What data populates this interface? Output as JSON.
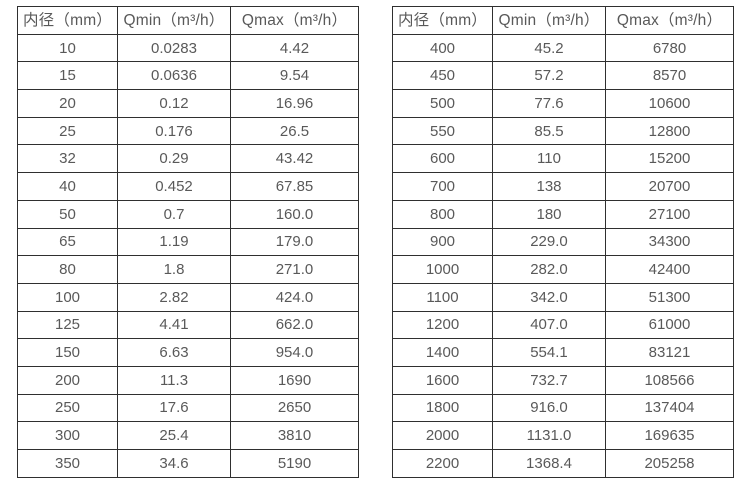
{
  "colors": {
    "background": "#ffffff",
    "border": "#2f2f2f",
    "text": "#595959"
  },
  "tables": [
    {
      "headers": [
        "内径（mm）",
        "Qmin（m³/h）",
        "Qmax（m³/h）"
      ],
      "rows": [
        [
          "10",
          "0.0283",
          "4.42"
        ],
        [
          "15",
          "0.0636",
          "9.54"
        ],
        [
          "20",
          "0.12",
          "16.96"
        ],
        [
          "25",
          "0.176",
          "26.5"
        ],
        [
          "32",
          "0.29",
          "43.42"
        ],
        [
          "40",
          "0.452",
          "67.85"
        ],
        [
          "50",
          "0.7",
          "160.0"
        ],
        [
          "65",
          "1.19",
          "179.0"
        ],
        [
          "80",
          "1.8",
          "271.0"
        ],
        [
          "100",
          "2.82",
          "424.0"
        ],
        [
          "125",
          "4.41",
          "662.0"
        ],
        [
          "150",
          "6.63",
          "954.0"
        ],
        [
          "200",
          "11.3",
          "1690"
        ],
        [
          "250",
          "17.6",
          "2650"
        ],
        [
          "300",
          "25.4",
          "3810"
        ],
        [
          "350",
          "34.6",
          "5190"
        ]
      ]
    },
    {
      "headers": [
        "内径（mm）",
        "Qmin（m³/h）",
        "Qmax（m³/h）"
      ],
      "rows": [
        [
          "400",
          "45.2",
          "6780"
        ],
        [
          "450",
          "57.2",
          "8570"
        ],
        [
          "500",
          "77.6",
          "10600"
        ],
        [
          "550",
          "85.5",
          "12800"
        ],
        [
          "600",
          "110",
          "15200"
        ],
        [
          "700",
          "138",
          "20700"
        ],
        [
          "800",
          "180",
          "27100"
        ],
        [
          "900",
          "229.0",
          "34300"
        ],
        [
          "1000",
          "282.0",
          "42400"
        ],
        [
          "1100",
          "342.0",
          "51300"
        ],
        [
          "1200",
          "407.0",
          "61000"
        ],
        [
          "1400",
          "554.1",
          "83121"
        ],
        [
          "1600",
          "732.7",
          "108566"
        ],
        [
          "1800",
          "916.0",
          "137404"
        ],
        [
          "2000",
          "1131.0",
          "169635"
        ],
        [
          "2200",
          "1368.4",
          "205258"
        ]
      ]
    }
  ]
}
